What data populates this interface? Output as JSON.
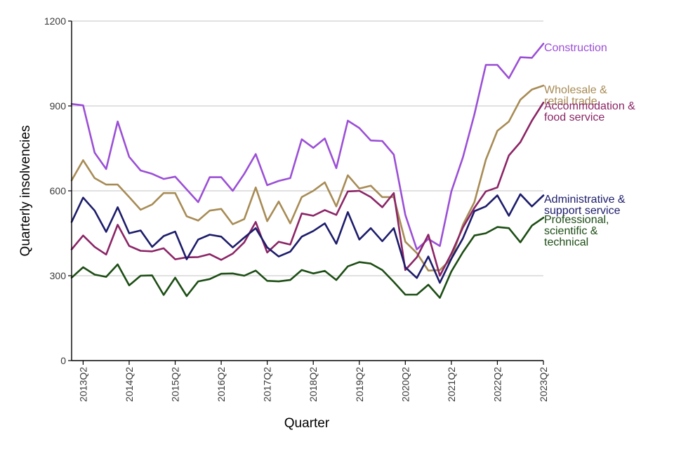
{
  "chart_data": {
    "type": "line",
    "xlabel": "Quarter",
    "ylabel": "Quarterly insolvencies",
    "ylim": [
      0,
      1200
    ],
    "yticks": [
      0,
      300,
      600,
      900,
      1200
    ],
    "grid": "horizontal",
    "legend": "direct labels at line ends (right)",
    "x": [
      "2013Q1",
      "2013Q2",
      "2013Q3",
      "2013Q4",
      "2014Q1",
      "2014Q2",
      "2014Q3",
      "2014Q4",
      "2015Q1",
      "2015Q2",
      "2015Q3",
      "2015Q4",
      "2016Q1",
      "2016Q2",
      "2016Q3",
      "2016Q4",
      "2017Q1",
      "2017Q2",
      "2017Q3",
      "2017Q4",
      "2018Q1",
      "2018Q2",
      "2018Q3",
      "2018Q4",
      "2019Q1",
      "2019Q2",
      "2019Q3",
      "2019Q4",
      "2020Q1",
      "2020Q2",
      "2020Q3",
      "2020Q4",
      "2021Q1",
      "2021Q2",
      "2021Q3",
      "2021Q4",
      "2022Q1",
      "2022Q2",
      "2022Q3",
      "2022Q4",
      "2023Q1",
      "2023Q2"
    ],
    "xtick_labels": [
      "2013Q2",
      "2014Q2",
      "2015Q2",
      "2016Q2",
      "2017Q2",
      "2018Q2",
      "2019Q2",
      "2020Q2",
      "2021Q2",
      "2022Q2",
      "2023Q2"
    ],
    "series": [
      {
        "name": "Construction",
        "color": "#9b4fd6",
        "label_lines": [
          "Construction"
        ],
        "values": [
          907,
          902,
          735,
          677,
          845,
          720,
          672,
          660,
          642,
          650,
          605,
          560,
          648,
          648,
          600,
          660,
          730,
          620,
          635,
          645,
          782,
          752,
          785,
          680,
          848,
          822,
          778,
          776,
          728,
          515,
          393,
          430,
          405,
          598,
          718,
          870,
          1045,
          1045,
          998,
          1072,
          1070,
          1120
        ]
      },
      {
        "name": "Wholesale & retail trade",
        "color": "#a78b55",
        "label_lines": [
          "Wholesale &",
          "retail trade"
        ],
        "values": [
          637,
          708,
          645,
          622,
          622,
          578,
          533,
          552,
          592,
          592,
          510,
          495,
          530,
          536,
          482,
          500,
          612,
          493,
          562,
          485,
          578,
          600,
          630,
          545,
          655,
          608,
          618,
          578,
          578,
          420,
          380,
          318,
          320,
          360,
          480,
          560,
          710,
          812,
          845,
          922,
          958,
          972
        ]
      },
      {
        "name": "Accommodation & food service",
        "color": "#8b2566",
        "label_lines": [
          "Accommodation &",
          "food service"
        ],
        "values": [
          393,
          442,
          402,
          375,
          480,
          405,
          388,
          386,
          397,
          358,
          365,
          366,
          376,
          356,
          378,
          418,
          490,
          382,
          420,
          410,
          520,
          512,
          532,
          515,
          598,
          600,
          578,
          542,
          592,
          320,
          365,
          445,
          300,
          378,
          470,
          540,
          598,
          612,
          725,
          772,
          848,
          912
        ]
      },
      {
        "name": "Administrative & support service",
        "color": "#1c1c6b",
        "label_lines": [
          "Administrative &",
          "support service"
        ],
        "values": [
          490,
          576,
          530,
          455,
          542,
          450,
          460,
          402,
          440,
          456,
          358,
          428,
          445,
          438,
          400,
          435,
          468,
          400,
          368,
          385,
          438,
          458,
          485,
          413,
          525,
          428,
          468,
          422,
          468,
          330,
          292,
          368,
          275,
          360,
          432,
          528,
          545,
          584,
          512,
          588,
          545,
          584
        ]
      },
      {
        "name": "Professional, scientific & technical",
        "color": "#1c4d14",
        "label_lines": [
          "Professional,",
          "scientific &",
          "technical"
        ],
        "values": [
          293,
          330,
          304,
          296,
          340,
          266,
          300,
          301,
          232,
          293,
          228,
          280,
          288,
          307,
          308,
          300,
          318,
          282,
          280,
          285,
          320,
          308,
          317,
          285,
          333,
          348,
          343,
          320,
          278,
          233,
          233,
          268,
          222,
          315,
          383,
          442,
          450,
          472,
          468,
          418,
          477,
          505
        ]
      }
    ]
  }
}
